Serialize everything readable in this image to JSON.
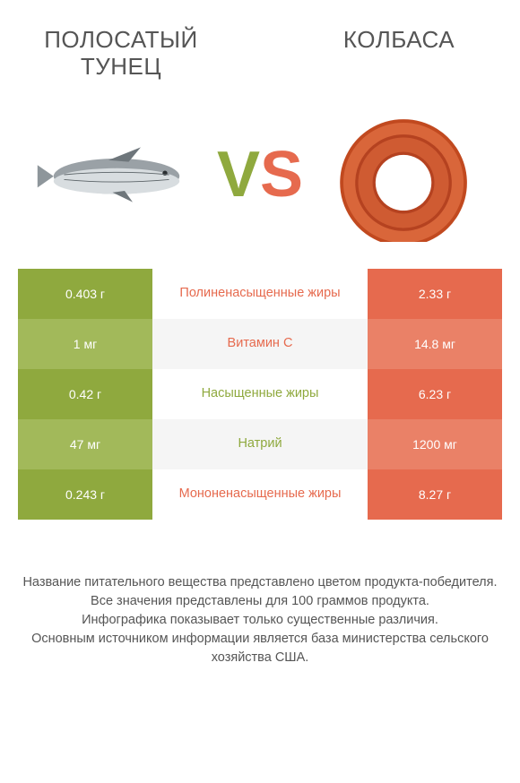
{
  "header": {
    "left": "ПОЛОСАТЫЙ\nТУНЕЦ",
    "right": "КОЛБАСА"
  },
  "vs": {
    "v": "V",
    "s": "S"
  },
  "colors": {
    "green_dark": "#8fa93e",
    "green_light": "#a2b95a",
    "orange_dark": "#e66a4e",
    "orange_light": "#ea8167",
    "mid_alt": "#f5f5f5",
    "text": "#555555"
  },
  "rows": [
    {
      "left": "0.403 г",
      "label": "Полиненасыщенные жиры",
      "right": "2.33 г",
      "winner": "orange"
    },
    {
      "left": "1 мг",
      "label": "Витамин C",
      "right": "14.8 мг",
      "winner": "orange"
    },
    {
      "left": "0.42 г",
      "label": "Насыщенные жиры",
      "right": "6.23 г",
      "winner": "green"
    },
    {
      "left": "47 мг",
      "label": "Натрий",
      "right": "1200 мг",
      "winner": "green"
    },
    {
      "left": "0.243 г",
      "label": "Мононенасыщенные жиры",
      "right": "8.27 г",
      "winner": "orange"
    }
  ],
  "footer": {
    "l1": "Название питательного вещества представлено цветом продукта-победителя.",
    "l2": "Все значения представлены для 100 граммов продукта.",
    "l3": "Инфографика показывает только существенные различия.",
    "l4": "Основным источником информации является база министерства сельского хозяйства США."
  }
}
